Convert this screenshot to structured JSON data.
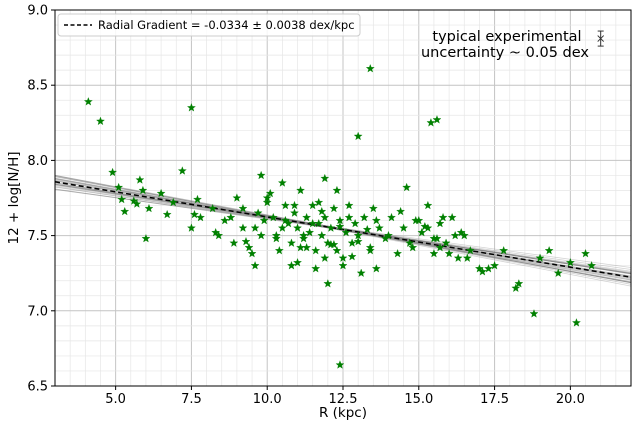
{
  "chart_data": {
    "type": "scatter",
    "title": "",
    "xlabel": "R (kpc)",
    "ylabel": "12 + log[N/H]",
    "xlim": [
      3.0,
      22.0
    ],
    "ylim": [
      6.5,
      9.0
    ],
    "xticks": [
      5.0,
      7.5,
      10.0,
      12.5,
      15.0,
      17.5,
      20.0
    ],
    "xtick_labels": [
      "5.0",
      "7.5",
      "10.0",
      "12.5",
      "15.0",
      "17.5",
      "20.0"
    ],
    "yticks": [
      6.5,
      7.0,
      7.5,
      8.0,
      8.5,
      9.0
    ],
    "ytick_labels": [
      "6.5",
      "7.0",
      "7.5",
      "8.0",
      "8.5",
      "9.0"
    ],
    "grid": "major-and-minor",
    "legend_placement": "top-left",
    "colors": {
      "points": "#008000",
      "fit_line": "#000000",
      "bootstrap_lines": "#808080"
    },
    "fit": {
      "label": "Radial Gradient = -0.0334 ± 0.0038 dex/kpc",
      "slope": -0.0334,
      "slope_error": 0.0038,
      "intercept": 7.958,
      "style": "dashed"
    },
    "annotation": {
      "lines": [
        "typical experimental",
        "uncertainty ~ 0.05 dex"
      ],
      "errorbar": {
        "x": 21.0,
        "y": 8.81,
        "err": 0.05
      }
    },
    "series": [
      {
        "marker": "star",
        "x": [
          4.1,
          4.5,
          7.5,
          13.4,
          13.0,
          15.4,
          15.6,
          12.4,
          18.8,
          20.2,
          4.9,
          5.1,
          5.2,
          5.3,
          5.6,
          5.7,
          5.8,
          5.9,
          6.0,
          6.1,
          6.5,
          6.7,
          6.9,
          7.2,
          7.5,
          7.6,
          7.7,
          7.8,
          8.2,
          8.3,
          8.4,
          8.6,
          8.8,
          8.9,
          9.0,
          9.2,
          9.3,
          9.4,
          9.5,
          9.6,
          9.7,
          9.8,
          9.9,
          10.0,
          10.1,
          10.2,
          10.3,
          10.4,
          10.5,
          10.6,
          10.7,
          10.8,
          10.9,
          11.0,
          11.1,
          11.2,
          11.3,
          11.4,
          11.5,
          11.6,
          11.7,
          11.8,
          11.9,
          12.0,
          12.1,
          12.2,
          12.3,
          12.4,
          12.5,
          12.6,
          12.7,
          12.8,
          12.9,
          13.0,
          13.2,
          13.4,
          13.5,
          13.7,
          13.9,
          14.1,
          14.3,
          14.5,
          14.7,
          14.9,
          15.1,
          15.3,
          15.5,
          15.7,
          15.9,
          16.1,
          16.3,
          16.5,
          16.7,
          17.0,
          17.5,
          17.8,
          18.2,
          18.3,
          19.0,
          19.3,
          19.6,
          20.0,
          20.5,
          20.7,
          9.2,
          9.6,
          10.0,
          10.3,
          10.6,
          10.9,
          11.2,
          11.5,
          11.8,
          12.1,
          12.4,
          12.7,
          13.0,
          13.3,
          13.6,
          14.0,
          14.4,
          14.8,
          15.2,
          15.6,
          16.0,
          16.4,
          11.0,
          11.3,
          11.6,
          11.9,
          12.2,
          12.5,
          12.8,
          13.1,
          13.4,
          15.0,
          15.3,
          15.5,
          15.7,
          16.2,
          16.6,
          17.1,
          17.3,
          12.0,
          11.7,
          10.5,
          9.8,
          11.1,
          11.9,
          12.3,
          10.8,
          13.6,
          14.6,
          15.8
        ],
        "y": [
          8.39,
          8.26,
          8.35,
          8.61,
          8.16,
          8.25,
          8.27,
          6.64,
          6.98,
          6.92,
          7.92,
          7.82,
          7.74,
          7.66,
          7.73,
          7.71,
          7.87,
          7.8,
          7.48,
          7.68,
          7.78,
          7.64,
          7.72,
          7.93,
          7.55,
          7.64,
          7.74,
          7.62,
          7.68,
          7.52,
          7.5,
          7.6,
          7.62,
          7.45,
          7.75,
          7.55,
          7.46,
          7.42,
          7.38,
          7.3,
          7.65,
          7.5,
          7.6,
          7.75,
          7.78,
          7.62,
          7.5,
          7.4,
          7.55,
          7.7,
          7.58,
          7.45,
          7.65,
          7.55,
          7.8,
          7.48,
          7.62,
          7.52,
          7.7,
          7.4,
          7.58,
          7.5,
          7.62,
          7.45,
          7.55,
          7.68,
          7.4,
          7.6,
          7.35,
          7.52,
          7.7,
          7.45,
          7.58,
          7.5,
          7.62,
          7.42,
          7.68,
          7.55,
          7.48,
          7.62,
          7.38,
          7.55,
          7.45,
          7.6,
          7.52,
          7.7,
          7.38,
          7.58,
          7.45,
          7.62,
          7.35,
          7.5,
          7.4,
          7.28,
          7.3,
          7.4,
          7.15,
          7.18,
          7.35,
          7.4,
          7.25,
          7.32,
          7.38,
          7.3,
          7.68,
          7.55,
          7.72,
          7.48,
          7.6,
          7.7,
          7.5,
          7.58,
          7.66,
          7.44,
          7.56,
          7.62,
          7.46,
          7.54,
          7.6,
          7.5,
          7.66,
          7.42,
          7.56,
          7.48,
          7.38,
          7.52,
          7.32,
          7.42,
          7.28,
          7.35,
          7.44,
          7.3,
          7.36,
          7.25,
          7.4,
          7.6,
          7.55,
          7.48,
          7.42,
          7.5,
          7.35,
          7.26,
          7.28,
          7.18,
          7.72,
          7.85,
          7.9,
          7.42,
          7.88,
          7.8,
          7.3,
          7.28,
          7.82,
          7.62
        ]
      }
    ]
  }
}
